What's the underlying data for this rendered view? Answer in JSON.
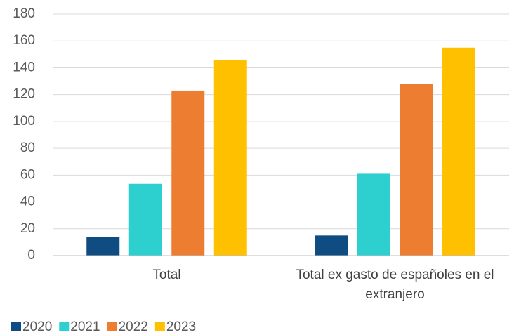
{
  "chart_data": {
    "type": "bar",
    "categories": [
      "Total",
      "Total ex gasto de españoles en el extranjero"
    ],
    "series": [
      {
        "name": "2020",
        "color": "#0f4c81",
        "values": [
          14,
          15
        ]
      },
      {
        "name": "2021",
        "color": "#2ecfcf",
        "values": [
          53.5,
          61
        ]
      },
      {
        "name": "2022",
        "color": "#ed7d31",
        "values": [
          123,
          128
        ]
      },
      {
        "name": "2023",
        "color": "#ffc000",
        "values": [
          146,
          155
        ]
      }
    ],
    "ylim": [
      0,
      180
    ],
    "yticks": [
      0,
      20,
      40,
      60,
      80,
      100,
      120,
      140,
      160,
      180
    ],
    "grid": true,
    "legend": "bottom"
  }
}
